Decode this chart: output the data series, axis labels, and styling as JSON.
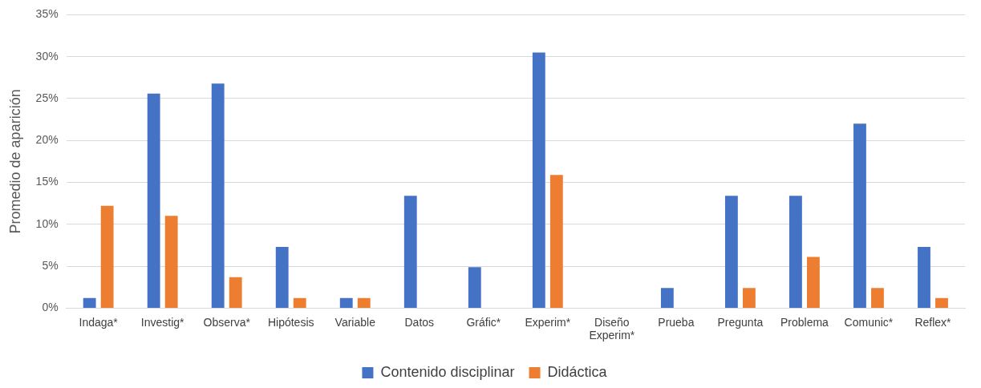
{
  "chart_data": {
    "type": "bar",
    "ylabel": "Promedio de aparición",
    "categories": [
      "Indaga*",
      "Investig*",
      "Observa*",
      "Hipótesis",
      "Variable",
      "Datos",
      "Gráfic*",
      "Experim*",
      "Diseño Experim*",
      "Prueba",
      "Pregunta",
      "Problema",
      "Comunic*",
      "Reflex*"
    ],
    "series": [
      {
        "name": "Contenido disciplinar",
        "color": "#4472c4",
        "values": [
          1.2,
          25.6,
          26.8,
          7.3,
          1.2,
          13.4,
          4.9,
          30.5,
          0,
          2.4,
          13.4,
          13.4,
          22.0,
          7.3
        ]
      },
      {
        "name": "Didáctica",
        "color": "#ed7d31",
        "values": [
          12.2,
          11.0,
          3.7,
          1.2,
          1.2,
          0,
          0,
          15.9,
          0,
          0,
          2.4,
          6.1,
          2.4,
          1.2
        ]
      }
    ],
    "ylim": [
      0,
      35
    ],
    "yticks": [
      {
        "value": 0,
        "label": "0%"
      },
      {
        "value": 5,
        "label": "5%"
      },
      {
        "value": 10,
        "label": "10%"
      },
      {
        "value": 15,
        "label": "15%"
      },
      {
        "value": 20,
        "label": "20%"
      },
      {
        "value": 25,
        "label": "25%"
      },
      {
        "value": 30,
        "label": "30%"
      },
      {
        "value": 35,
        "label": "35%"
      }
    ],
    "grid": "y",
    "legend": "bottom"
  }
}
